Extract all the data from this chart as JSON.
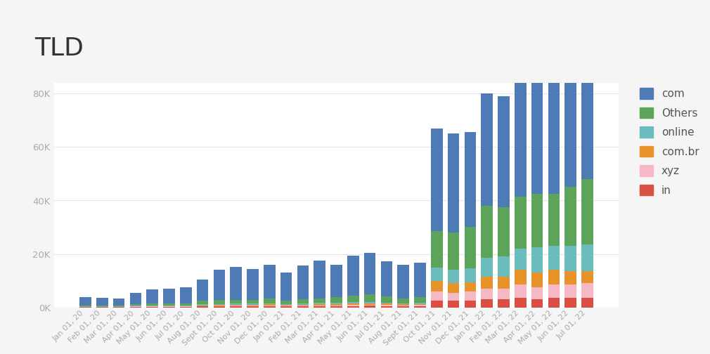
{
  "title": "TLD",
  "title_fontsize": 26,
  "header_bg": "#ebebeb",
  "fig_bg": "#f5f5f5",
  "plot_bg": "#ffffff",
  "categories": [
    "Jan 01, 20",
    "Feb 01, 20",
    "Mar 01, 20",
    "Apr 01, 20",
    "May 01, 20",
    "Jun 01, 20",
    "Jul 01, 20",
    "Aug 01, 20",
    "Sept 01, 20",
    "Oct 01, 20",
    "Nov 01, 20",
    "Dec 01, 20",
    "Jan 01, 21",
    "Feb 01, 21",
    "Mar 01, 21",
    "Apr 01, 21",
    "May 01, 21",
    "Jun 01, 21",
    "Jul 01, 21",
    "Aug 01, 21",
    "Sept 01, 21",
    "Oct 01, 21",
    "Nov 01, 21",
    "Dec 01, 21",
    "Jan 01, 22",
    "Feb 01, 22",
    "Mar 01, 22",
    "Apr 01, 22",
    "May 01, 22",
    "Jun 01, 22",
    "Jul 01, 22"
  ],
  "series": {
    "com": [
      3000,
      2800,
      2700,
      4200,
      5200,
      5600,
      6000,
      7800,
      11500,
      12500,
      11500,
      12500,
      10500,
      12500,
      14000,
      12000,
      15000,
      15500,
      13000,
      12500,
      13000,
      38500,
      37000,
      35500,
      42000,
      41500,
      46000,
      41500,
      45500,
      47000,
      51000
    ],
    "Others": [
      300,
      300,
      280,
      550,
      650,
      650,
      750,
      1400,
      1400,
      1400,
      1400,
      1800,
      1400,
      1700,
      1800,
      2200,
      2200,
      2800,
      2300,
      1800,
      2000,
      13500,
      14000,
      15500,
      19500,
      18500,
      19500,
      20000,
      19500,
      22000,
      24500
    ],
    "online": [
      180,
      170,
      170,
      260,
      280,
      280,
      280,
      350,
      380,
      370,
      430,
      450,
      360,
      450,
      460,
      450,
      600,
      600,
      520,
      440,
      500,
      5000,
      5000,
      5000,
      7000,
      7500,
      8000,
      9500,
      9000,
      9500,
      10000
    ],
    "com.br": [
      90,
      90,
      90,
      180,
      180,
      170,
      180,
      270,
      280,
      350,
      360,
      360,
      270,
      350,
      360,
      440,
      520,
      520,
      440,
      350,
      400,
      4000,
      3500,
      3500,
      4500,
      4500,
      5500,
      5500,
      5500,
      5000,
      4500
    ],
    "xyz": [
      90,
      85,
      85,
      140,
      180,
      170,
      180,
      220,
      270,
      270,
      300,
      350,
      260,
      310,
      360,
      360,
      430,
      420,
      390,
      350,
      400,
      3500,
      3000,
      3500,
      4000,
      4000,
      5000,
      4500,
      5000,
      5000,
      5500
    ],
    "in": [
      90,
      85,
      85,
      170,
      180,
      170,
      180,
      310,
      360,
      370,
      360,
      450,
      360,
      370,
      460,
      450,
      530,
      600,
      530,
      450,
      500,
      2500,
      2500,
      2500,
      3000,
      3000,
      3500,
      3000,
      3500,
      3500,
      3500
    ]
  },
  "colors": {
    "com": "#4e7ab5",
    "Others": "#5ba45a",
    "online": "#6bbcbc",
    "com.br": "#e8922a",
    "xyz": "#f5b8c4",
    "in": "#d94f43"
  },
  "stack_order": [
    "in",
    "xyz",
    "com.br",
    "online",
    "Others",
    "com"
  ],
  "legend_order": [
    "com",
    "Others",
    "online",
    "com.br",
    "xyz",
    "in"
  ],
  "ylim": [
    0,
    84000
  ],
  "yticks": [
    0,
    20000,
    40000,
    60000,
    80000
  ],
  "ytick_labels": [
    "0K",
    "20K",
    "40K",
    "60K",
    "80K"
  ],
  "grid_color": "#e5e5e5",
  "tick_color": "#aaaaaa"
}
